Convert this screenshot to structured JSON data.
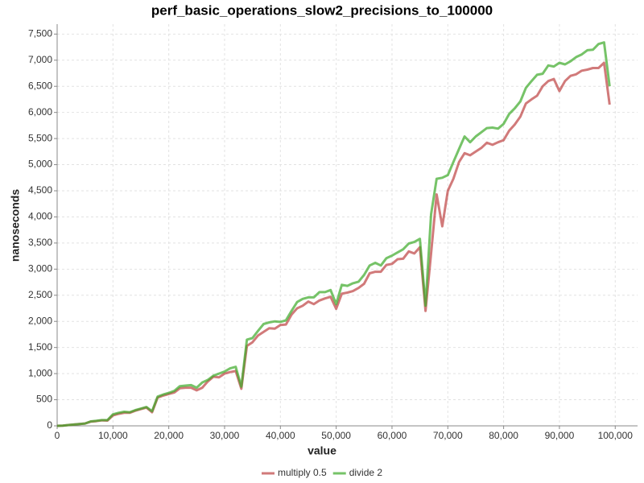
{
  "chart_data": {
    "type": "line",
    "title": "perf_basic_operations_slow2_precisions_to_100000",
    "x_label": "value",
    "y_label": "nanoseconds",
    "x": [
      0,
      1000,
      2000,
      3000,
      4000,
      5000,
      6000,
      7000,
      8000,
      9000,
      10000,
      11000,
      12000,
      13000,
      14000,
      15000,
      16000,
      17000,
      18000,
      19000,
      20000,
      21000,
      22000,
      23000,
      24000,
      25000,
      26000,
      27000,
      28000,
      29000,
      30000,
      31000,
      32000,
      33000,
      34000,
      35000,
      36000,
      37000,
      38000,
      39000,
      40000,
      41000,
      42000,
      43000,
      44000,
      45000,
      46000,
      47000,
      48000,
      49000,
      50000,
      51000,
      52000,
      53000,
      54000,
      55000,
      56000,
      57000,
      58000,
      59000,
      60000,
      61000,
      62000,
      63000,
      64000,
      65000,
      66000,
      67000,
      68000,
      69000,
      70000,
      71000,
      72000,
      73000,
      74000,
      75000,
      76000,
      77000,
      78000,
      79000,
      80000,
      81000,
      82000,
      83000,
      84000,
      85000,
      86000,
      87000,
      88000,
      89000,
      90000,
      91000,
      92000,
      93000,
      94000,
      95000,
      96000,
      97000,
      98000,
      99000
    ],
    "series": [
      {
        "name": "multiply 0.5",
        "color": "rgba(178,34,34,0.6)",
        "values": [
          0,
          5,
          15,
          25,
          35,
          45,
          80,
          90,
          105,
          100,
          200,
          230,
          250,
          250,
          290,
          320,
          350,
          260,
          540,
          580,
          610,
          640,
          720,
          730,
          730,
          680,
          730,
          850,
          940,
          930,
          1000,
          1030,
          1050,
          710,
          1530,
          1600,
          1730,
          1800,
          1870,
          1860,
          1930,
          1940,
          2130,
          2250,
          2300,
          2380,
          2330,
          2400,
          2440,
          2470,
          2240,
          2530,
          2550,
          2580,
          2640,
          2720,
          2920,
          2950,
          2950,
          3080,
          3100,
          3190,
          3200,
          3340,
          3300,
          3420,
          2200,
          3300,
          4430,
          3820,
          4500,
          4730,
          5050,
          5220,
          5180,
          5250,
          5320,
          5420,
          5380,
          5430,
          5470,
          5650,
          5770,
          5920,
          6170,
          6250,
          6320,
          6500,
          6600,
          6640,
          6410,
          6600,
          6700,
          6730,
          6800,
          6820,
          6850,
          6850,
          6950,
          6150
        ]
      },
      {
        "name": "divide 2",
        "color": "rgba(60,170,40,0.7)",
        "values": [
          0,
          5,
          15,
          25,
          35,
          45,
          85,
          95,
          110,
          110,
          220,
          250,
          270,
          260,
          300,
          330,
          360,
          280,
          560,
          600,
          630,
          670,
          760,
          770,
          780,
          730,
          830,
          880,
          960,
          1000,
          1040,
          1100,
          1130,
          750,
          1650,
          1680,
          1820,
          1950,
          1980,
          2000,
          1990,
          2020,
          2200,
          2370,
          2430,
          2460,
          2460,
          2560,
          2560,
          2600,
          2330,
          2700,
          2680,
          2730,
          2760,
          2890,
          3070,
          3120,
          3070,
          3210,
          3260,
          3320,
          3380,
          3490,
          3520,
          3580,
          2300,
          4050,
          4730,
          4750,
          4800,
          5050,
          5300,
          5540,
          5430,
          5540,
          5620,
          5700,
          5710,
          5690,
          5780,
          5970,
          6080,
          6210,
          6470,
          6600,
          6720,
          6740,
          6900,
          6880,
          6950,
          6920,
          6980,
          7060,
          7110,
          7190,
          7200,
          7310,
          7340,
          6500
        ]
      }
    ],
    "xlim": [
      0,
      104000
    ],
    "ylim": [
      0,
      7690
    ],
    "xticks": [
      0,
      {
        "value": 10000,
        "label": "10,000"
      },
      {
        "value": 20000,
        "label": "20,000"
      },
      {
        "value": 30000,
        "label": "30,000"
      },
      {
        "value": 40000,
        "label": "40,000"
      },
      {
        "value": 50000,
        "label": "50,000"
      },
      {
        "value": 60000,
        "label": "60,000"
      },
      {
        "value": 70000,
        "label": "70,000"
      },
      {
        "value": 80000,
        "label": "80,000"
      },
      {
        "value": 90000,
        "label": "90,000"
      },
      {
        "value": 100000,
        "label": "100,000"
      }
    ],
    "yticks": [
      0,
      500,
      {
        "value": 1000,
        "label": "1,000"
      },
      {
        "value": 1500,
        "label": "1,500"
      },
      {
        "value": 2000,
        "label": "2,000"
      },
      {
        "value": 2500,
        "label": "2,500"
      },
      {
        "value": 3000,
        "label": "3,000"
      },
      {
        "value": 3500,
        "label": "3,500"
      },
      {
        "value": 4000,
        "label": "4,000"
      },
      {
        "value": 4500,
        "label": "4,500"
      },
      {
        "value": 5000,
        "label": "5,000"
      },
      {
        "value": 5500,
        "label": "5,500"
      },
      {
        "value": 6000,
        "label": "6,000"
      },
      {
        "value": 6500,
        "label": "6,500"
      },
      {
        "value": 7000,
        "label": "7,000"
      },
      {
        "value": 7500,
        "label": "7,500"
      }
    ],
    "grid": true,
    "legend": "bottom"
  }
}
